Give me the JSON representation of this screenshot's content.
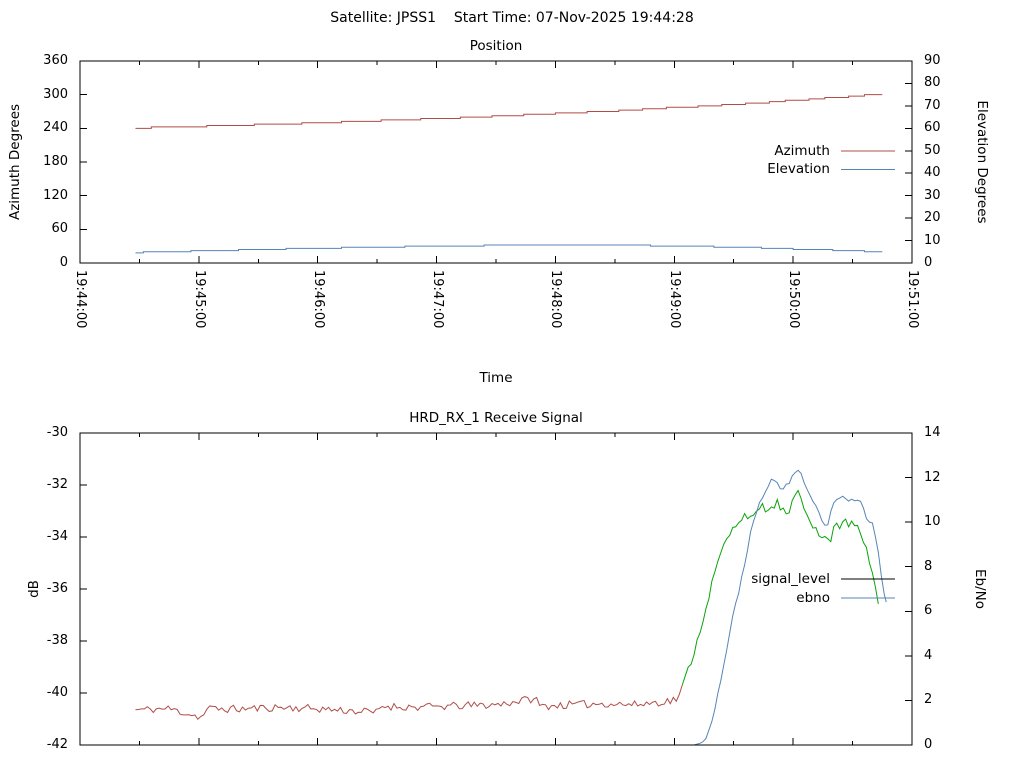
{
  "header": {
    "title": "Satellite: JPSS1    Start Time: 07-Nov-2025 19:44:28"
  },
  "chart_data": [
    {
      "type": "line",
      "title": "Position",
      "xlabel": "Time",
      "x_axis": {
        "range_seconds": [
          0,
          420
        ],
        "major_tick_seconds": 60,
        "minor_tick_seconds": 30,
        "tick_labels": [
          "19:44:00",
          "19:45:00",
          "19:46:00",
          "19:47:00",
          "19:48:00",
          "19:49:00",
          "19:50:00",
          "19:51:00"
        ]
      },
      "left_axis": {
        "label": "Azimuth Degrees",
        "range": [
          0,
          360
        ],
        "ticks": [
          0,
          60,
          120,
          180,
          240,
          300,
          360
        ]
      },
      "right_axis": {
        "label": "Elevation Degrees",
        "range": [
          0,
          90
        ],
        "ticks": [
          0,
          10,
          20,
          30,
          40,
          50,
          60,
          70,
          80,
          90
        ]
      },
      "legend": {
        "position": "right",
        "entries": [
          {
            "label": "Azimuth",
            "color": "#b04d48"
          },
          {
            "label": "Elevation",
            "color": "#5685b5"
          }
        ]
      },
      "series": [
        {
          "name": "Azimuth",
          "axis": "left",
          "color": "#b04d48",
          "quant": 2.5,
          "sample_dt": 4,
          "points": [
            [
              28,
              240.5
            ],
            [
              60,
              243.5
            ],
            [
              90,
              246.5
            ],
            [
              120,
              250
            ],
            [
              150,
              253.5
            ],
            [
              180,
              257.5
            ],
            [
              210,
              262
            ],
            [
              240,
              266.5
            ],
            [
              270,
              271.5
            ],
            [
              300,
              277
            ],
            [
              330,
              283
            ],
            [
              350,
              287.5
            ],
            [
              370,
              292.5
            ],
            [
              385,
              296.5
            ],
            [
              395,
              299
            ],
            [
              405,
              300.5
            ]
          ]
        },
        {
          "name": "Elevation",
          "axis": "right",
          "color": "#5685b5",
          "quant": 0.5,
          "sample_dt": 4,
          "points": [
            [
              28,
              4.7
            ],
            [
              60,
              5.4
            ],
            [
              100,
              6.2
            ],
            [
              140,
              6.9
            ],
            [
              180,
              7.5
            ],
            [
              215,
              7.9
            ],
            [
              245,
              8.0
            ],
            [
              275,
              7.9
            ],
            [
              305,
              7.5
            ],
            [
              335,
              6.9
            ],
            [
              365,
              6.1
            ],
            [
              385,
              5.5
            ],
            [
              395,
              5.2
            ],
            [
              405,
              5.0
            ]
          ]
        }
      ]
    },
    {
      "type": "line",
      "title": "HRD_RX_1 Receive Signal",
      "xlabel": "",
      "x_axis": {
        "range_seconds": [
          0,
          420
        ],
        "major_tick_seconds": 60,
        "minor_tick_seconds": 30,
        "tick_labels": []
      },
      "left_axis": {
        "label": "dB",
        "range": [
          -42,
          -30
        ],
        "ticks": [
          -30,
          -32,
          -34,
          -36,
          -38,
          -40,
          -42
        ]
      },
      "right_axis": {
        "label": "Eb/No",
        "range": [
          0,
          14
        ],
        "ticks": [
          0,
          2,
          4,
          6,
          8,
          10,
          12,
          14
        ]
      },
      "legend": {
        "position": "right",
        "entries": [
          {
            "label": "signal_level",
            "color": "#000000"
          },
          {
            "label": "ebno",
            "color": "#5685b5"
          }
        ]
      },
      "series": [
        {
          "name": "signal_level",
          "axis": "left",
          "sample_dt": 1.5,
          "noise": {
            "amp": 0.15,
            "after": 0,
            "seed": 11
          },
          "threshold": {
            "value": -40.0,
            "below_color": "#b04d48",
            "above_color": "#0aa30a"
          },
          "points": [
            [
              28,
              -40.65
            ],
            [
              45,
              -40.6
            ],
            [
              62,
              -40.95
            ],
            [
              64,
              -40.6
            ],
            [
              80,
              -40.62
            ],
            [
              100,
              -40.55
            ],
            [
              120,
              -40.6
            ],
            [
              150,
              -40.75
            ],
            [
              152,
              -40.5
            ],
            [
              170,
              -40.55
            ],
            [
              190,
              -40.5
            ],
            [
              210,
              -40.45
            ],
            [
              230,
              -40.2
            ],
            [
              232,
              -40.5
            ],
            [
              250,
              -40.45
            ],
            [
              265,
              -40.4
            ],
            [
              280,
              -40.45
            ],
            [
              292,
              -40.35
            ],
            [
              298,
              -40.3
            ],
            [
              302,
              -40.2
            ],
            [
              304,
              -39.8
            ],
            [
              306,
              -39.3
            ],
            [
              308,
              -38.9
            ],
            [
              312,
              -37.9
            ],
            [
              316,
              -36.7
            ],
            [
              320,
              -35.5
            ],
            [
              324,
              -34.5
            ],
            [
              328,
              -33.9
            ],
            [
              332,
              -33.4
            ],
            [
              336,
              -33.1
            ],
            [
              340,
              -33.3
            ],
            [
              344,
              -32.8
            ],
            [
              348,
              -33.0
            ],
            [
              352,
              -32.7
            ],
            [
              355,
              -33.0
            ],
            [
              358,
              -33.2
            ],
            [
              360,
              -32.6
            ],
            [
              362,
              -32.1
            ],
            [
              364,
              -32.5
            ],
            [
              366,
              -32.9
            ],
            [
              368,
              -33.2
            ],
            [
              371,
              -33.7
            ],
            [
              374,
              -34.1
            ],
            [
              376,
              -33.9
            ],
            [
              378,
              -34.3
            ],
            [
              380,
              -33.8
            ],
            [
              382,
              -33.4
            ],
            [
              384,
              -33.6
            ],
            [
              386,
              -33.2
            ],
            [
              388,
              -33.5
            ],
            [
              390,
              -33.3
            ],
            [
              392,
              -33.6
            ],
            [
              394,
              -33.9
            ],
            [
              396,
              -34.3
            ],
            [
              398,
              -34.8
            ],
            [
              400,
              -35.4
            ],
            [
              402,
              -36.1
            ],
            [
              403,
              -36.5
            ]
          ]
        },
        {
          "name": "ebno",
          "axis": "right",
          "color": "#5685b5",
          "sample_dt": 1.5,
          "min": 0,
          "noise": {
            "amp": 0.1,
            "after": 318,
            "seed": 23
          },
          "points": [
            [
              28,
              0
            ],
            [
              310,
              0
            ],
            [
              314,
              0.1
            ],
            [
              316,
              0.3
            ],
            [
              318,
              0.8
            ],
            [
              320,
              1.5
            ],
            [
              323,
              2.7
            ],
            [
              326,
              4.1
            ],
            [
              329,
              5.5
            ],
            [
              332,
              6.7
            ],
            [
              335,
              7.9
            ],
            [
              338,
              9.3
            ],
            [
              341,
              10.3
            ],
            [
              344,
              11.1
            ],
            [
              347,
              11.5
            ],
            [
              350,
              12.0
            ],
            [
              352,
              11.7
            ],
            [
              354,
              11.5
            ],
            [
              356,
              11.6
            ],
            [
              358,
              11.8
            ],
            [
              360,
              12.1
            ],
            [
              362,
              12.4
            ],
            [
              364,
              12.1
            ],
            [
              366,
              11.6
            ],
            [
              368,
              11.2
            ],
            [
              370,
              10.9
            ],
            [
              372,
              10.6
            ],
            [
              374,
              10.2
            ],
            [
              376,
              9.9
            ],
            [
              377,
              9.7
            ],
            [
              379,
              10.4
            ],
            [
              381,
              10.9
            ],
            [
              383,
              11.0
            ],
            [
              385,
              11.2
            ],
            [
              387,
              10.9
            ],
            [
              389,
              11.1
            ],
            [
              391,
              10.9
            ],
            [
              393,
              11.1
            ],
            [
              395,
              10.7
            ],
            [
              396,
              10.4
            ],
            [
              397,
              10.1
            ],
            [
              398,
              9.9
            ],
            [
              399,
              10.3
            ],
            [
              401,
              9.6
            ],
            [
              403,
              8.6
            ],
            [
              405,
              7.3
            ],
            [
              406,
              6.8
            ],
            [
              407,
              6.5
            ]
          ]
        }
      ]
    }
  ]
}
